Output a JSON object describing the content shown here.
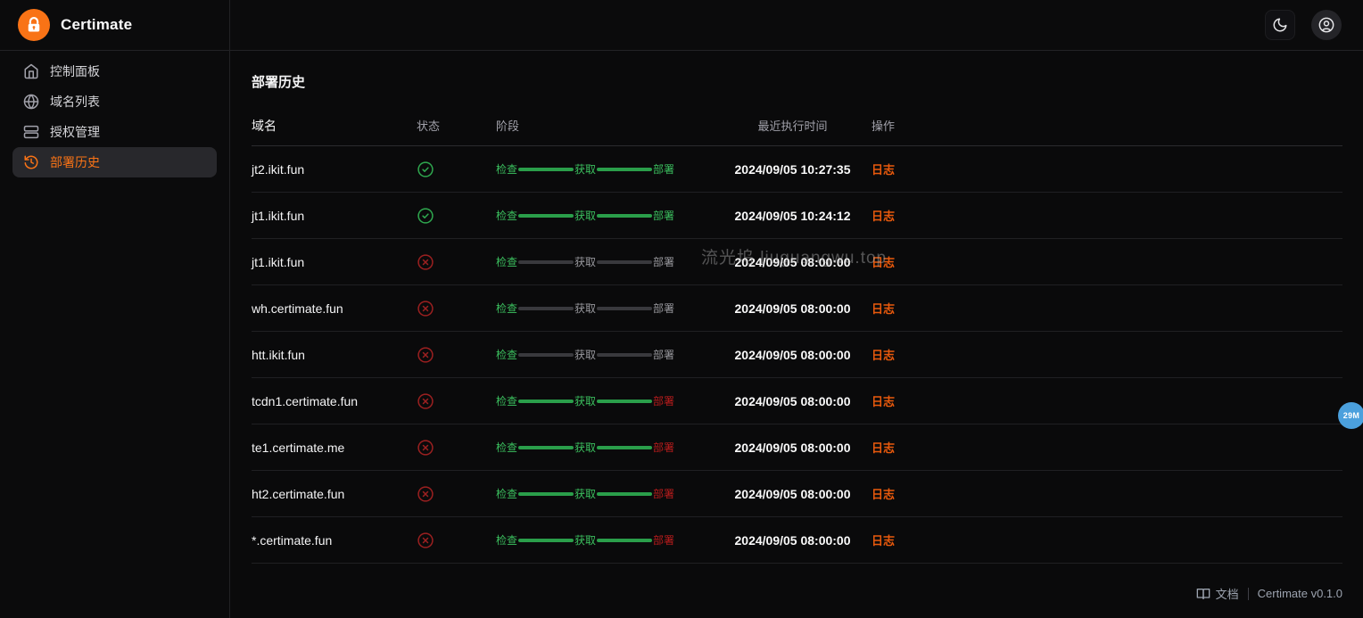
{
  "app": {
    "name": "Certimate"
  },
  "topbar": {
    "theme_toggle_icon": "moon-icon",
    "user_icon": "user-circle-icon"
  },
  "sidebar": {
    "items": [
      {
        "label": "控制面板",
        "icon": "home-icon",
        "active": false
      },
      {
        "label": "域名列表",
        "icon": "globe-icon",
        "active": false
      },
      {
        "label": "授权管理",
        "icon": "server-icon",
        "active": false
      },
      {
        "label": "部署历史",
        "icon": "history-icon",
        "active": true
      }
    ]
  },
  "page": {
    "title": "部署历史"
  },
  "table": {
    "columns": [
      "域名",
      "状态",
      "阶段",
      "最近执行时间",
      "操作"
    ],
    "stage_labels": [
      "检查",
      "获取",
      "部署"
    ],
    "action_label": "日志",
    "stage_states": {
      "all_success": {
        "labels": [
          "done",
          "done",
          "done"
        ],
        "connectors": [
          "done",
          "done"
        ]
      },
      "check_only": {
        "labels": [
          "done",
          "pending",
          "pending"
        ],
        "connectors": [
          "pending",
          "pending"
        ]
      },
      "deploy_failed": {
        "labels": [
          "done",
          "done",
          "failed"
        ],
        "connectors": [
          "done",
          "done"
        ]
      }
    },
    "rows": [
      {
        "domain": "jt2.ikit.fun",
        "status": "success",
        "stage": "all_success",
        "time": "2024/09/05 10:27:35"
      },
      {
        "domain": "jt1.ikit.fun",
        "status": "success",
        "stage": "all_success",
        "time": "2024/09/05 10:24:12"
      },
      {
        "domain": "jt1.ikit.fun",
        "status": "failed",
        "stage": "check_only",
        "time": "2024/09/05 08:00:00"
      },
      {
        "domain": "wh.certimate.fun",
        "status": "failed",
        "stage": "check_only",
        "time": "2024/09/05 08:00:00"
      },
      {
        "domain": "htt.ikit.fun",
        "status": "failed",
        "stage": "check_only",
        "time": "2024/09/05 08:00:00"
      },
      {
        "domain": "tcdn1.certimate.fun",
        "status": "failed",
        "stage": "deploy_failed",
        "time": "2024/09/05 08:00:00"
      },
      {
        "domain": "te1.certimate.me",
        "status": "failed",
        "stage": "deploy_failed",
        "time": "2024/09/05 08:00:00"
      },
      {
        "domain": "ht2.certimate.fun",
        "status": "failed",
        "stage": "deploy_failed",
        "time": "2024/09/05 08:00:00"
      },
      {
        "domain": "*.certimate.fun",
        "status": "failed",
        "stage": "deploy_failed",
        "time": "2024/09/05 08:00:00"
      }
    ]
  },
  "footer": {
    "docs_icon": "book-icon",
    "docs_label": "文档",
    "version": "Certimate v0.1.0"
  },
  "watermark": {
    "text": "流光坞 liuguangwu.top"
  },
  "overlay_badge": {
    "text": "29M"
  },
  "colors": {
    "accent_orange": "#f97316",
    "log_link_orange": "#e8590c",
    "success_green": "#2fa94f",
    "failed_red": "#b91c1c",
    "pending_gray": "#39393d",
    "badge_blue": "#4ba0dd",
    "background": "#0a0a0b"
  }
}
